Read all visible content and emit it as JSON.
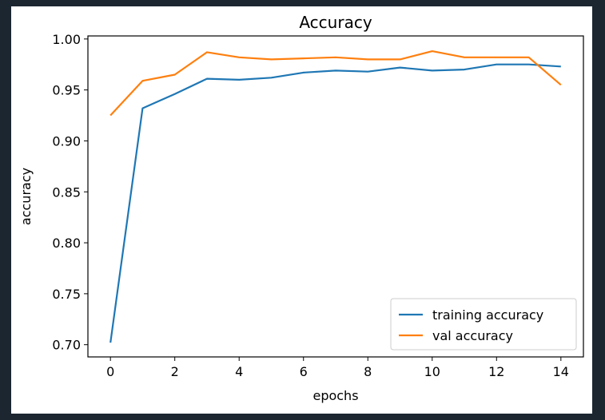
{
  "chart_data": {
    "type": "line",
    "title": "Accuracy",
    "xlabel": "epochs",
    "ylabel": "accuracy",
    "xlim": [
      -0.7,
      14.7
    ],
    "ylim": [
      0.688,
      1.003
    ],
    "xticks": [
      0,
      2,
      4,
      6,
      8,
      10,
      12,
      14
    ],
    "yticks": [
      0.7,
      0.75,
      0.8,
      0.85,
      0.9,
      0.95,
      1.0
    ],
    "ytick_labels": [
      "0.70",
      "0.75",
      "0.80",
      "0.85",
      "0.90",
      "0.95",
      "1.00"
    ],
    "legend_position": "lower-right",
    "grid": false,
    "x": [
      0,
      1,
      2,
      3,
      4,
      5,
      6,
      7,
      8,
      9,
      10,
      11,
      12,
      13,
      14
    ],
    "series": [
      {
        "name": "training accuracy",
        "color": "#1f77b4",
        "values": [
          0.702,
          0.932,
          0.946,
          0.961,
          0.96,
          0.962,
          0.967,
          0.969,
          0.968,
          0.972,
          0.969,
          0.97,
          0.975,
          0.975,
          0.973
        ]
      },
      {
        "name": "val accuracy",
        "color": "#ff7f0e",
        "values": [
          0.925,
          0.959,
          0.965,
          0.987,
          0.982,
          0.98,
          0.981,
          0.982,
          0.98,
          0.98,
          0.988,
          0.982,
          0.982,
          0.982,
          0.955
        ]
      }
    ]
  }
}
